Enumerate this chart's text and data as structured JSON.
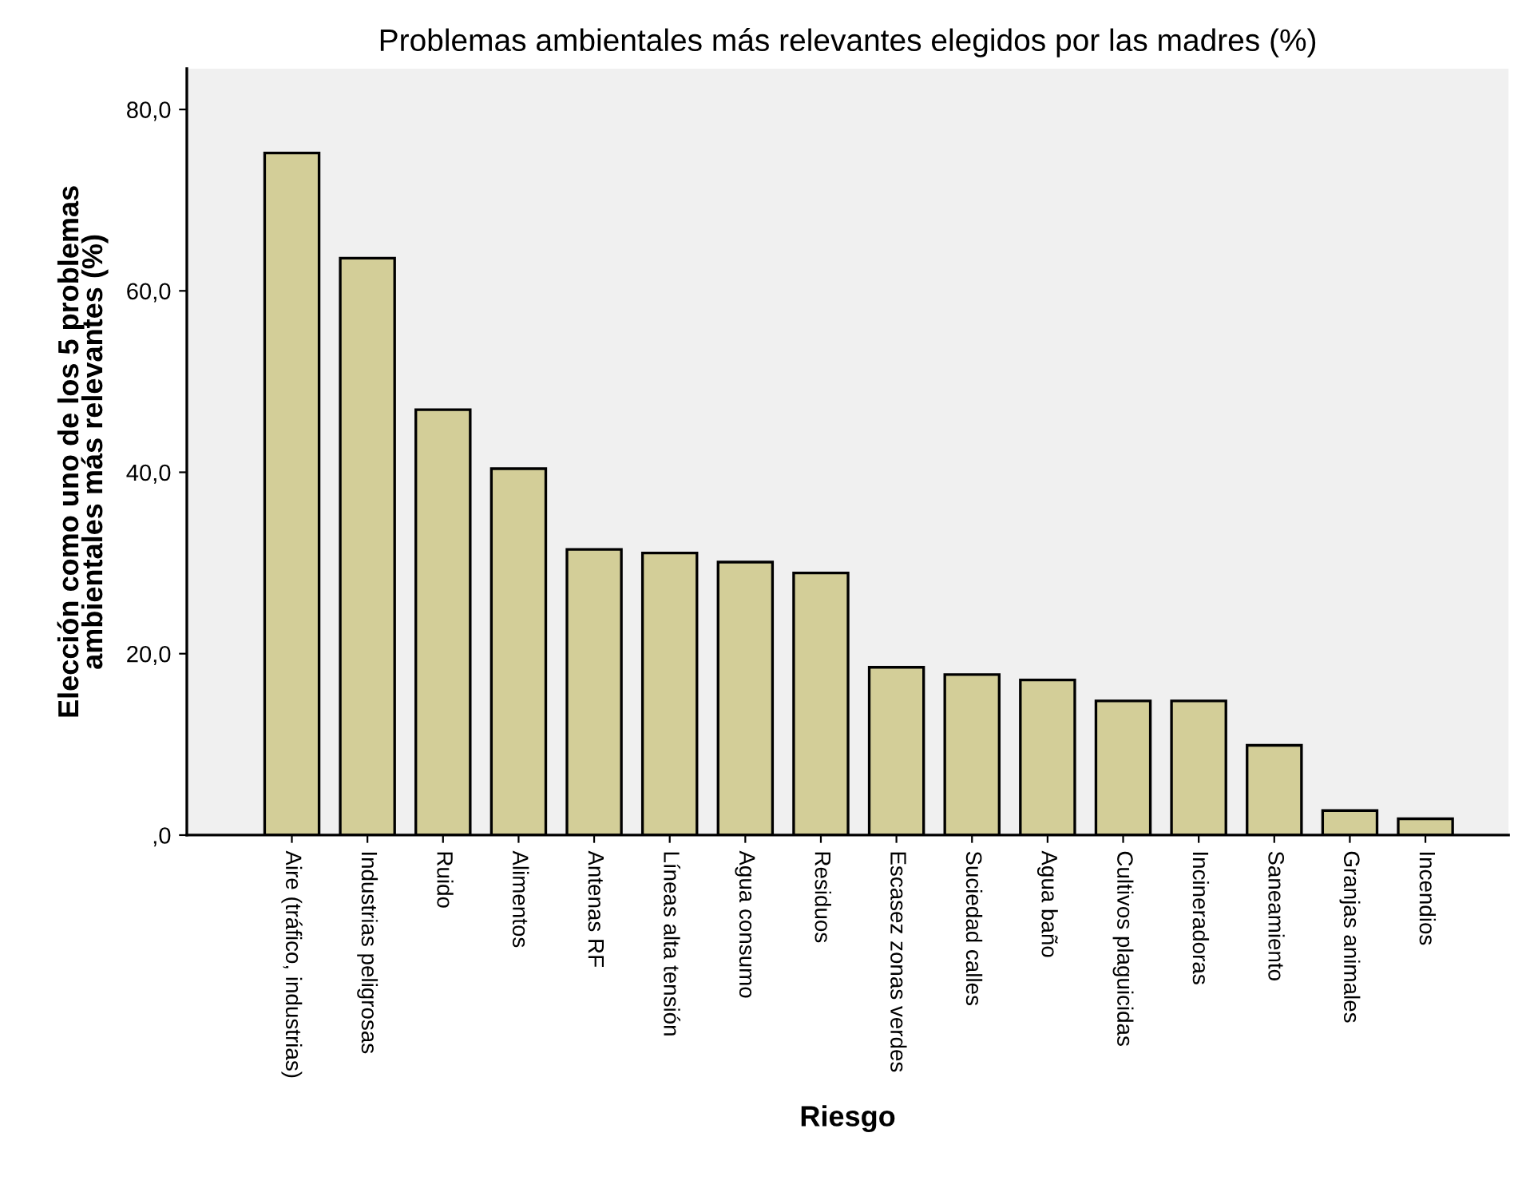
{
  "chart_data": {
    "type": "bar",
    "title": "Problemas ambientales más relevantes elegidos por las madres (%)",
    "xlabel": "Riesgo",
    "ylabel": "Elección como uno de los 5 problemas\nambientales más relevantes (%)",
    "categories": [
      "Aire (tráfico, industrias)",
      "Industrias peligrosas",
      "Ruido",
      "Alimentos",
      "Antenas RF",
      "Líneas alta tensión",
      "Agua consumo",
      "Residuos",
      "Escasez zonas verdes",
      "Suciedad calles",
      "Agua baño",
      "Cultivos plaguicidas",
      "Incineradoras",
      "Saneamiento",
      "Granjas animales",
      "Incendios"
    ],
    "values": [
      75.2,
      63.6,
      46.9,
      40.4,
      31.5,
      31.1,
      30.1,
      28.9,
      18.5,
      17.7,
      17.1,
      14.8,
      14.8,
      9.9,
      2.7,
      1.8
    ],
    "color": "#d3ce98",
    "ylim": [
      0,
      84.5
    ],
    "yticks": [
      {
        "value": 0,
        "label": ",0"
      },
      {
        "value": 20,
        "label": "20,0"
      },
      {
        "value": 40,
        "label": "40,0"
      },
      {
        "value": 60,
        "label": "60,0"
      },
      {
        "value": 80,
        "label": "80,0"
      }
    ],
    "grid": false,
    "legend": false
  }
}
